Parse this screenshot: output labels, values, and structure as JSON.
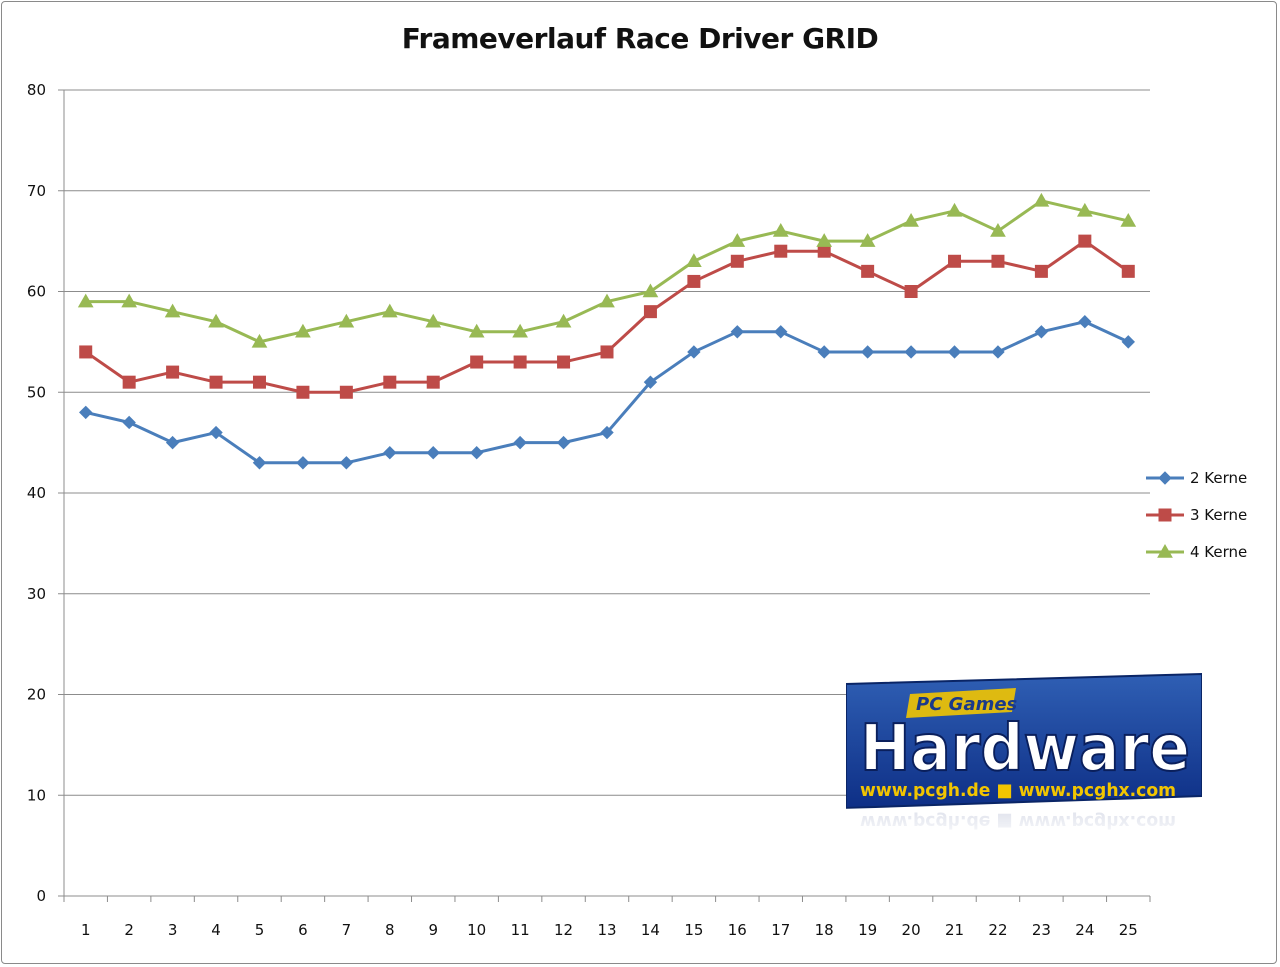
{
  "chart_data": {
    "type": "line",
    "title": "Frameverlauf Race Driver GRID",
    "xlabel": "",
    "ylabel": "",
    "categories": [
      "1",
      "2",
      "3",
      "4",
      "5",
      "6",
      "7",
      "8",
      "9",
      "10",
      "11",
      "12",
      "13",
      "14",
      "15",
      "16",
      "17",
      "18",
      "19",
      "20",
      "21",
      "22",
      "23",
      "24",
      "25"
    ],
    "ylim": [
      0,
      80
    ],
    "yticks": [
      0,
      10,
      20,
      30,
      40,
      50,
      60,
      70,
      80
    ],
    "grid": "horizontal",
    "legend_position": "right",
    "series": [
      {
        "name": "2 Kerne",
        "color": "#4a7ebb",
        "marker": "diamond",
        "values": [
          48,
          47,
          45,
          46,
          43,
          43,
          43,
          44,
          44,
          44,
          45,
          45,
          46,
          51,
          54,
          56,
          56,
          54,
          54,
          54,
          54,
          54,
          56,
          57,
          55
        ]
      },
      {
        "name": "3 Kerne",
        "color": "#be4b48",
        "marker": "square",
        "values": [
          54,
          51,
          52,
          51,
          51,
          50,
          50,
          51,
          51,
          53,
          53,
          53,
          54,
          58,
          61,
          63,
          64,
          64,
          62,
          60,
          63,
          63,
          62,
          65,
          62
        ]
      },
      {
        "name": "4 Kerne",
        "color": "#98b954",
        "marker": "triangle",
        "values": [
          59,
          59,
          58,
          57,
          55,
          56,
          57,
          58,
          57,
          56,
          56,
          57,
          59,
          60,
          63,
          65,
          66,
          65,
          65,
          67,
          68,
          66,
          69,
          68,
          67
        ]
      }
    ]
  },
  "watermark": {
    "brand_top": "PC Games",
    "brand_main": "Hardware",
    "urls": "www.pcgh.de ■ www.pcghx.com"
  }
}
